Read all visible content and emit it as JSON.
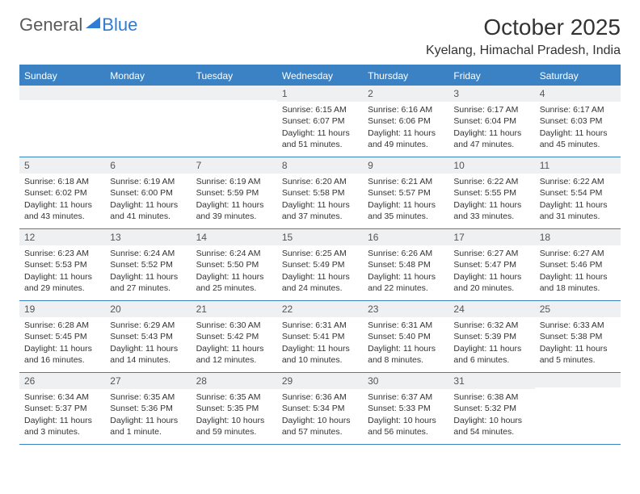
{
  "logo": {
    "text1": "General",
    "text2": "Blue"
  },
  "title": "October 2025",
  "location": "Kyelang, Himachal Pradesh, India",
  "weekdays": [
    "Sunday",
    "Monday",
    "Tuesday",
    "Wednesday",
    "Thursday",
    "Friday",
    "Saturday"
  ],
  "colors": {
    "header_bg": "#3a82c4",
    "header_text": "#ffffff",
    "daynum_bg": "#eef0f2",
    "border": "#3a82c4",
    "logo_gray": "#5a5a5a",
    "logo_blue": "#2e7cd6"
  },
  "weeks": [
    [
      {
        "n": "",
        "sr": "",
        "ss": "",
        "dl": ""
      },
      {
        "n": "",
        "sr": "",
        "ss": "",
        "dl": ""
      },
      {
        "n": "",
        "sr": "",
        "ss": "",
        "dl": ""
      },
      {
        "n": "1",
        "sr": "Sunrise: 6:15 AM",
        "ss": "Sunset: 6:07 PM",
        "dl": "Daylight: 11 hours and 51 minutes."
      },
      {
        "n": "2",
        "sr": "Sunrise: 6:16 AM",
        "ss": "Sunset: 6:06 PM",
        "dl": "Daylight: 11 hours and 49 minutes."
      },
      {
        "n": "3",
        "sr": "Sunrise: 6:17 AM",
        "ss": "Sunset: 6:04 PM",
        "dl": "Daylight: 11 hours and 47 minutes."
      },
      {
        "n": "4",
        "sr": "Sunrise: 6:17 AM",
        "ss": "Sunset: 6:03 PM",
        "dl": "Daylight: 11 hours and 45 minutes."
      }
    ],
    [
      {
        "n": "5",
        "sr": "Sunrise: 6:18 AM",
        "ss": "Sunset: 6:02 PM",
        "dl": "Daylight: 11 hours and 43 minutes."
      },
      {
        "n": "6",
        "sr": "Sunrise: 6:19 AM",
        "ss": "Sunset: 6:00 PM",
        "dl": "Daylight: 11 hours and 41 minutes."
      },
      {
        "n": "7",
        "sr": "Sunrise: 6:19 AM",
        "ss": "Sunset: 5:59 PM",
        "dl": "Daylight: 11 hours and 39 minutes."
      },
      {
        "n": "8",
        "sr": "Sunrise: 6:20 AM",
        "ss": "Sunset: 5:58 PM",
        "dl": "Daylight: 11 hours and 37 minutes."
      },
      {
        "n": "9",
        "sr": "Sunrise: 6:21 AM",
        "ss": "Sunset: 5:57 PM",
        "dl": "Daylight: 11 hours and 35 minutes."
      },
      {
        "n": "10",
        "sr": "Sunrise: 6:22 AM",
        "ss": "Sunset: 5:55 PM",
        "dl": "Daylight: 11 hours and 33 minutes."
      },
      {
        "n": "11",
        "sr": "Sunrise: 6:22 AM",
        "ss": "Sunset: 5:54 PM",
        "dl": "Daylight: 11 hours and 31 minutes."
      }
    ],
    [
      {
        "n": "12",
        "sr": "Sunrise: 6:23 AM",
        "ss": "Sunset: 5:53 PM",
        "dl": "Daylight: 11 hours and 29 minutes."
      },
      {
        "n": "13",
        "sr": "Sunrise: 6:24 AM",
        "ss": "Sunset: 5:52 PM",
        "dl": "Daylight: 11 hours and 27 minutes."
      },
      {
        "n": "14",
        "sr": "Sunrise: 6:24 AM",
        "ss": "Sunset: 5:50 PM",
        "dl": "Daylight: 11 hours and 25 minutes."
      },
      {
        "n": "15",
        "sr": "Sunrise: 6:25 AM",
        "ss": "Sunset: 5:49 PM",
        "dl": "Daylight: 11 hours and 24 minutes."
      },
      {
        "n": "16",
        "sr": "Sunrise: 6:26 AM",
        "ss": "Sunset: 5:48 PM",
        "dl": "Daylight: 11 hours and 22 minutes."
      },
      {
        "n": "17",
        "sr": "Sunrise: 6:27 AM",
        "ss": "Sunset: 5:47 PM",
        "dl": "Daylight: 11 hours and 20 minutes."
      },
      {
        "n": "18",
        "sr": "Sunrise: 6:27 AM",
        "ss": "Sunset: 5:46 PM",
        "dl": "Daylight: 11 hours and 18 minutes."
      }
    ],
    [
      {
        "n": "19",
        "sr": "Sunrise: 6:28 AM",
        "ss": "Sunset: 5:45 PM",
        "dl": "Daylight: 11 hours and 16 minutes."
      },
      {
        "n": "20",
        "sr": "Sunrise: 6:29 AM",
        "ss": "Sunset: 5:43 PM",
        "dl": "Daylight: 11 hours and 14 minutes."
      },
      {
        "n": "21",
        "sr": "Sunrise: 6:30 AM",
        "ss": "Sunset: 5:42 PM",
        "dl": "Daylight: 11 hours and 12 minutes."
      },
      {
        "n": "22",
        "sr": "Sunrise: 6:31 AM",
        "ss": "Sunset: 5:41 PM",
        "dl": "Daylight: 11 hours and 10 minutes."
      },
      {
        "n": "23",
        "sr": "Sunrise: 6:31 AM",
        "ss": "Sunset: 5:40 PM",
        "dl": "Daylight: 11 hours and 8 minutes."
      },
      {
        "n": "24",
        "sr": "Sunrise: 6:32 AM",
        "ss": "Sunset: 5:39 PM",
        "dl": "Daylight: 11 hours and 6 minutes."
      },
      {
        "n": "25",
        "sr": "Sunrise: 6:33 AM",
        "ss": "Sunset: 5:38 PM",
        "dl": "Daylight: 11 hours and 5 minutes."
      }
    ],
    [
      {
        "n": "26",
        "sr": "Sunrise: 6:34 AM",
        "ss": "Sunset: 5:37 PM",
        "dl": "Daylight: 11 hours and 3 minutes."
      },
      {
        "n": "27",
        "sr": "Sunrise: 6:35 AM",
        "ss": "Sunset: 5:36 PM",
        "dl": "Daylight: 11 hours and 1 minute."
      },
      {
        "n": "28",
        "sr": "Sunrise: 6:35 AM",
        "ss": "Sunset: 5:35 PM",
        "dl": "Daylight: 10 hours and 59 minutes."
      },
      {
        "n": "29",
        "sr": "Sunrise: 6:36 AM",
        "ss": "Sunset: 5:34 PM",
        "dl": "Daylight: 10 hours and 57 minutes."
      },
      {
        "n": "30",
        "sr": "Sunrise: 6:37 AM",
        "ss": "Sunset: 5:33 PM",
        "dl": "Daylight: 10 hours and 56 minutes."
      },
      {
        "n": "31",
        "sr": "Sunrise: 6:38 AM",
        "ss": "Sunset: 5:32 PM",
        "dl": "Daylight: 10 hours and 54 minutes."
      },
      {
        "n": "",
        "sr": "",
        "ss": "",
        "dl": ""
      }
    ]
  ]
}
